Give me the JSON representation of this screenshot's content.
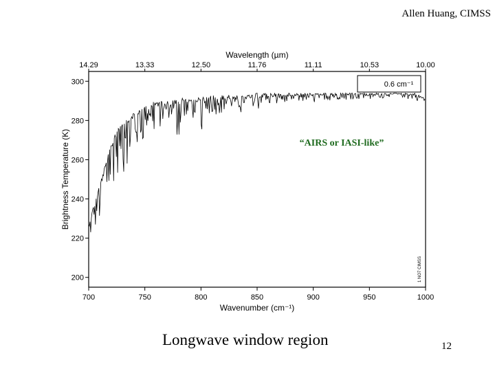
{
  "slide": {
    "credit": "Allen Huang, CIMSS",
    "caption": "Longwave window region",
    "page_number": "12"
  },
  "chart_data": {
    "type": "line",
    "title": "",
    "xlabel": "Wavenumber (cm⁻¹)",
    "ylabel": "Brightness Temperature (K)",
    "top_axis_label": "Wavelength (µm)",
    "xlim": [
      700,
      1000
    ],
    "ylim": [
      195,
      305
    ],
    "x_ticks": [
      "700",
      "750",
      "800",
      "850",
      "900",
      "950",
      "1000"
    ],
    "y_ticks": [
      "200",
      "220",
      "240",
      "260",
      "280",
      "300"
    ],
    "top_ticks": [
      {
        "wavenumber": 700,
        "label": "14.29"
      },
      {
        "wavenumber": 750,
        "label": "13.33"
      },
      {
        "wavenumber": 800,
        "label": "12.50"
      },
      {
        "wavenumber": 850,
        "label": "11.76"
      },
      {
        "wavenumber": 900,
        "label": "11.11"
      },
      {
        "wavenumber": 950,
        "label": "10.53"
      },
      {
        "wavenumber": 1000,
        "label": "10.00"
      }
    ],
    "resolution_label": "0.6 cm⁻¹",
    "annotation": "“AIRS or IASI-like”",
    "annotation_color": "#1e6a1e",
    "side_note": "1 NO7 CIMSS",
    "grid": false,
    "legend": "none",
    "series": [
      {
        "color": "#000000",
        "x": [
          700,
          705,
          710,
          715,
          720,
          725,
          730,
          735,
          740,
          745,
          750,
          755,
          760,
          765,
          770,
          775,
          780,
          785,
          790,
          795,
          800,
          805,
          810,
          815,
          820,
          825,
          830,
          835,
          840,
          845,
          850,
          855,
          860,
          865,
          870,
          875,
          880,
          885,
          890,
          895,
          900,
          905,
          910,
          915,
          920,
          925,
          930,
          935,
          940,
          945,
          950,
          955,
          960,
          965,
          970,
          975,
          980,
          985,
          990,
          995,
          1000
        ],
        "upper": [
          228,
          238,
          248,
          258,
          268,
          276,
          280,
          282,
          284,
          286,
          288,
          289,
          290,
          290,
          290,
          291,
          291,
          292,
          292,
          292,
          292,
          292,
          293,
          293,
          293,
          293,
          293,
          293,
          293,
          293,
          294,
          294,
          294,
          294,
          294,
          294,
          294,
          294,
          294,
          294,
          294,
          294,
          294,
          294,
          294,
          294,
          294,
          294,
          294,
          294,
          294,
          294,
          294,
          294,
          294,
          294,
          294,
          294,
          294,
          293,
          291
        ],
        "lower": [
          217,
          223,
          230,
          236,
          242,
          246,
          250,
          256,
          262,
          267,
          272,
          274,
          272,
          276,
          279,
          278,
          270,
          276,
          282,
          280,
          273,
          283,
          284,
          282,
          285,
          286,
          286,
          284,
          286,
          287,
          285,
          288,
          287,
          289,
          288,
          289,
          288,
          289,
          289,
          290,
          289,
          290,
          290,
          290,
          290,
          291,
          290,
          291,
          291,
          291,
          291,
          291,
          291,
          292,
          292,
          292,
          291,
          291,
          290,
          289,
          287
        ]
      }
    ]
  }
}
